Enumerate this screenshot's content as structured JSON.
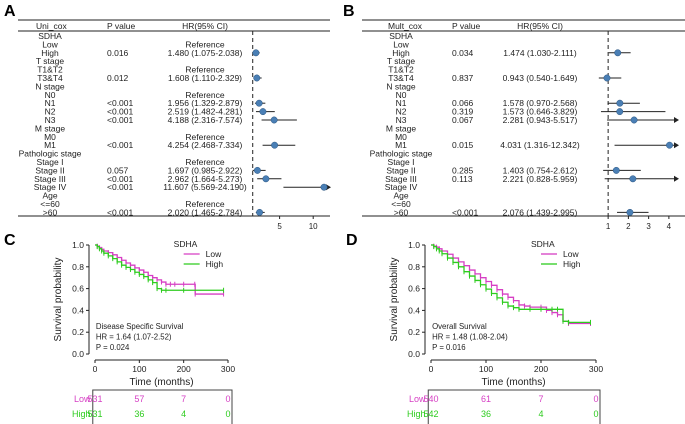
{
  "chart_data": [
    {
      "panel": "A",
      "type": "forest",
      "columns": {
        "var": "Uni_cox",
        "p": "P value",
        "hr": "HR(95% CI)"
      },
      "x_ticks": [
        5,
        10
      ],
      "xlim": [
        0,
        12.5
      ],
      "ref_line": 1,
      "rows": [
        {
          "label": "SDHA"
        },
        {
          "label": "Low",
          "hr_text": "Reference"
        },
        {
          "label": "High",
          "p": "0.016",
          "hr_text": "1.480 (1.075-2.038)",
          "hr": 1.48,
          "lo": 1.075,
          "hi": 2.038
        },
        {
          "label": "T stage"
        },
        {
          "label": "T1&T2",
          "hr_text": "Reference"
        },
        {
          "label": "T3&T4",
          "p": "0.012",
          "hr_text": "1.608 (1.110-2.329)",
          "hr": 1.608,
          "lo": 1.11,
          "hi": 2.329
        },
        {
          "label": "N stage"
        },
        {
          "label": "N0",
          "hr_text": "Reference"
        },
        {
          "label": "N1",
          "p": "<0.001",
          "hr_text": "1.956 (1.329-2.879)",
          "hr": 1.956,
          "lo": 1.329,
          "hi": 2.879
        },
        {
          "label": "N2",
          "p": "<0.001",
          "hr_text": "2.519 (1.482-4.281)",
          "hr": 2.519,
          "lo": 1.482,
          "hi": 4.281
        },
        {
          "label": "N3",
          "p": "<0.001",
          "hr_text": "4.188 (2.316-7.574)",
          "hr": 4.188,
          "lo": 2.316,
          "hi": 7.574
        },
        {
          "label": "M stage"
        },
        {
          "label": "M0",
          "hr_text": "Reference"
        },
        {
          "label": "M1",
          "p": "<0.001",
          "hr_text": "4.254 (2.468-7.334)",
          "hr": 4.254,
          "lo": 2.468,
          "hi": 7.334
        },
        {
          "label": "Pathologic stage"
        },
        {
          "label": "Stage I",
          "hr_text": "Reference"
        },
        {
          "label": "Stage II",
          "p": "0.057",
          "hr_text": "1.697 (0.985-2.922)",
          "hr": 1.697,
          "lo": 0.985,
          "hi": 2.922
        },
        {
          "label": "Stage III",
          "p": "<0.001",
          "hr_text": "2.962 (1.664-5.273)",
          "hr": 2.962,
          "lo": 1.664,
          "hi": 5.273
        },
        {
          "label": "Stage IV",
          "p": "<0.001",
          "hr_text": "11.607 (5.569-24.190)",
          "hr": 11.607,
          "lo": 5.569,
          "hi": 24.19,
          "arrow": true
        },
        {
          "label": "Age"
        },
        {
          "label": "<=60",
          "hr_text": "Reference"
        },
        {
          "label": ">60",
          "p": "<0.001",
          "hr_text": "2.020 (1.465-2.784)",
          "hr": 2.02,
          "lo": 1.465,
          "hi": 2.784
        }
      ]
    },
    {
      "panel": "B",
      "type": "forest",
      "columns": {
        "var": "Mult_cox",
        "p": "P value",
        "hr": "HR(95% CI)"
      },
      "x_ticks": [
        1,
        2,
        3,
        4
      ],
      "xlim": [
        0.45,
        4.45
      ],
      "ref_line": 1,
      "rows": [
        {
          "label": "SDHA"
        },
        {
          "label": "Low"
        },
        {
          "label": "High",
          "p": "0.034",
          "hr_text": "1.474 (1.030-2.111)",
          "hr": 1.474,
          "lo": 1.03,
          "hi": 2.111
        },
        {
          "label": "T stage"
        },
        {
          "label": "T1&T2"
        },
        {
          "label": "T3&T4",
          "p": "0.837",
          "hr_text": "0.943 (0.540-1.649)",
          "hr": 0.943,
          "lo": 0.54,
          "hi": 1.649
        },
        {
          "label": "N stage"
        },
        {
          "label": "N0"
        },
        {
          "label": "N1",
          "p": "0.066",
          "hr_text": "1.578 (0.970-2.568)",
          "hr": 1.578,
          "lo": 0.97,
          "hi": 2.568
        },
        {
          "label": "N2",
          "p": "0.319",
          "hr_text": "1.573 (0.646-3.829)",
          "hr": 1.573,
          "lo": 0.646,
          "hi": 3.829
        },
        {
          "label": "N3",
          "p": "0.067",
          "hr_text": "2.281 (0.943-5.517)",
          "hr": 2.281,
          "lo": 0.943,
          "hi": 5.517,
          "arrow": true
        },
        {
          "label": "M stage"
        },
        {
          "label": "M0"
        },
        {
          "label": "M1",
          "p": "0.015",
          "hr_text": "4.031 (1.316-12.342)",
          "hr": 4.031,
          "lo": 1.316,
          "hi": 12.342,
          "arrow": true
        },
        {
          "label": "Pathologic stage"
        },
        {
          "label": "Stage I"
        },
        {
          "label": "Stage II",
          "p": "0.285",
          "hr_text": "1.403 (0.754-2.612)",
          "hr": 1.403,
          "lo": 0.754,
          "hi": 2.612
        },
        {
          "label": "Stage III",
          "p": "0.113",
          "hr_text": "2.221 (0.828-5.959)",
          "hr": 2.221,
          "lo": 0.828,
          "hi": 5.959,
          "arrow": true
        },
        {
          "label": "Stage IV"
        },
        {
          "label": "Age"
        },
        {
          "label": "<=60"
        },
        {
          "label": ">60",
          "p": "<0.001",
          "hr_text": "2.076 (1.439-2.995)",
          "hr": 2.076,
          "lo": 1.439,
          "hi": 2.995
        }
      ]
    },
    {
      "panel": "C",
      "type": "line",
      "subtype": "kaplan-meier",
      "xlabel": "Time (months)",
      "ylabel": "Survival probability",
      "xlim": [
        0,
        300
      ],
      "ylim": [
        0,
        1
      ],
      "x_ticks": [
        0,
        100,
        200,
        300
      ],
      "y_ticks": [
        "0.0",
        "0.2",
        "0.4",
        "0.6",
        "0.8",
        "1.0"
      ],
      "legend_title": "SDHA",
      "legend_position": "top-right",
      "series": [
        {
          "name": "Low",
          "color": "#d63fc4",
          "points": [
            [
              0,
              1.0
            ],
            [
              5,
              0.99
            ],
            [
              10,
              0.975
            ],
            [
              15,
              0.96
            ],
            [
              20,
              0.945
            ],
            [
              30,
              0.93
            ],
            [
              40,
              0.91
            ],
            [
              50,
              0.885
            ],
            [
              60,
              0.86
            ],
            [
              70,
              0.835
            ],
            [
              80,
              0.815
            ],
            [
              90,
              0.79
            ],
            [
              100,
              0.77
            ],
            [
              110,
              0.75
            ],
            [
              120,
              0.72
            ],
            [
              130,
              0.7
            ],
            [
              140,
              0.68
            ],
            [
              150,
              0.66
            ],
            [
              160,
              0.64
            ],
            [
              170,
              0.64
            ],
            [
              180,
              0.64
            ],
            [
              200,
              0.64
            ],
            [
              225,
              0.64
            ],
            [
              226,
              0.55
            ],
            [
              290,
              0.55
            ]
          ]
        },
        {
          "name": "High",
          "color": "#2ecc1f",
          "points": [
            [
              0,
              1.0
            ],
            [
              5,
              0.985
            ],
            [
              10,
              0.965
            ],
            [
              15,
              0.945
            ],
            [
              20,
              0.925
            ],
            [
              30,
              0.9
            ],
            [
              40,
              0.875
            ],
            [
              50,
              0.845
            ],
            [
              60,
              0.815
            ],
            [
              70,
              0.795
            ],
            [
              80,
              0.775
            ],
            [
              90,
              0.75
            ],
            [
              100,
              0.73
            ],
            [
              110,
              0.71
            ],
            [
              120,
              0.68
            ],
            [
              130,
              0.655
            ],
            [
              140,
              0.6
            ],
            [
              150,
              0.585
            ],
            [
              160,
              0.585
            ],
            [
              200,
              0.585
            ],
            [
              290,
              0.585
            ]
          ]
        }
      ],
      "annotations": [
        "Disease Specific Survival",
        "HR = 1.64 (1.07-2.52)",
        "P = 0.024"
      ],
      "risk_table": {
        "times": [
          0,
          100,
          200,
          300
        ],
        "rows": [
          {
            "label": "Low",
            "color": "#d63fc4",
            "values": [
              "531",
              "57",
              "7",
              "0"
            ]
          },
          {
            "label": "High",
            "color": "#2ecc1f",
            "values": [
              "531",
              "36",
              "4",
              "0"
            ]
          }
        ]
      }
    },
    {
      "panel": "D",
      "type": "line",
      "subtype": "kaplan-meier",
      "xlabel": "Time (months)",
      "ylabel": "Survival probability",
      "xlim": [
        0,
        300
      ],
      "ylim": [
        0,
        1
      ],
      "x_ticks": [
        0,
        100,
        200,
        300
      ],
      "y_ticks": [
        "0.0",
        "0.2",
        "0.4",
        "0.6",
        "0.8",
        "1.0"
      ],
      "legend_title": "SDHA",
      "legend_position": "top-right",
      "series": [
        {
          "name": "Low",
          "color": "#d63fc4",
          "points": [
            [
              0,
              1.0
            ],
            [
              5,
              0.99
            ],
            [
              10,
              0.98
            ],
            [
              15,
              0.965
            ],
            [
              20,
              0.945
            ],
            [
              30,
              0.915
            ],
            [
              40,
              0.88
            ],
            [
              50,
              0.845
            ],
            [
              60,
              0.81
            ],
            [
              70,
              0.77
            ],
            [
              80,
              0.735
            ],
            [
              90,
              0.7
            ],
            [
              100,
              0.665
            ],
            [
              110,
              0.63
            ],
            [
              120,
              0.59
            ],
            [
              130,
              0.55
            ],
            [
              140,
              0.52
            ],
            [
              150,
              0.49
            ],
            [
              160,
              0.45
            ],
            [
              170,
              0.44
            ],
            [
              180,
              0.43
            ],
            [
              200,
              0.43
            ],
            [
              210,
              0.4
            ],
            [
              220,
              0.38
            ],
            [
              230,
              0.36
            ],
            [
              240,
              0.3
            ],
            [
              250,
              0.28
            ],
            [
              290,
              0.28
            ]
          ]
        },
        {
          "name": "High",
          "color": "#2ecc1f",
          "points": [
            [
              0,
              1.0
            ],
            [
              5,
              0.985
            ],
            [
              10,
              0.965
            ],
            [
              15,
              0.945
            ],
            [
              20,
              0.92
            ],
            [
              30,
              0.88
            ],
            [
              40,
              0.84
            ],
            [
              50,
              0.8
            ],
            [
              60,
              0.755
            ],
            [
              70,
              0.715
            ],
            [
              80,
              0.675
            ],
            [
              90,
              0.635
            ],
            [
              100,
              0.595
            ],
            [
              110,
              0.555
            ],
            [
              120,
              0.515
            ],
            [
              130,
              0.475
            ],
            [
              140,
              0.44
            ],
            [
              150,
              0.425
            ],
            [
              160,
              0.41
            ],
            [
              180,
              0.41
            ],
            [
              200,
              0.41
            ],
            [
              220,
              0.41
            ],
            [
              230,
              0.41
            ],
            [
              240,
              0.3
            ],
            [
              250,
              0.29
            ],
            [
              290,
              0.29
            ]
          ]
        }
      ],
      "annotations": [
        "Overall Survival",
        "HR = 1.48 (1.08-2.04)",
        "P = 0.016"
      ],
      "risk_table": {
        "times": [
          0,
          100,
          200,
          300
        ],
        "rows": [
          {
            "label": "Low",
            "color": "#d63fc4",
            "values": [
              "540",
              "61",
              "7",
              "0"
            ]
          },
          {
            "label": "High",
            "color": "#2ecc1f",
            "values": [
              "542",
              "36",
              "4",
              "0"
            ]
          }
        ]
      }
    }
  ],
  "labels": {
    "A": "A",
    "B": "B",
    "C": "C",
    "D": "D"
  },
  "colors": {
    "point": "#4a7fb5",
    "axis": "#222222",
    "low": "#d63fc4",
    "high": "#2ecc1f"
  }
}
